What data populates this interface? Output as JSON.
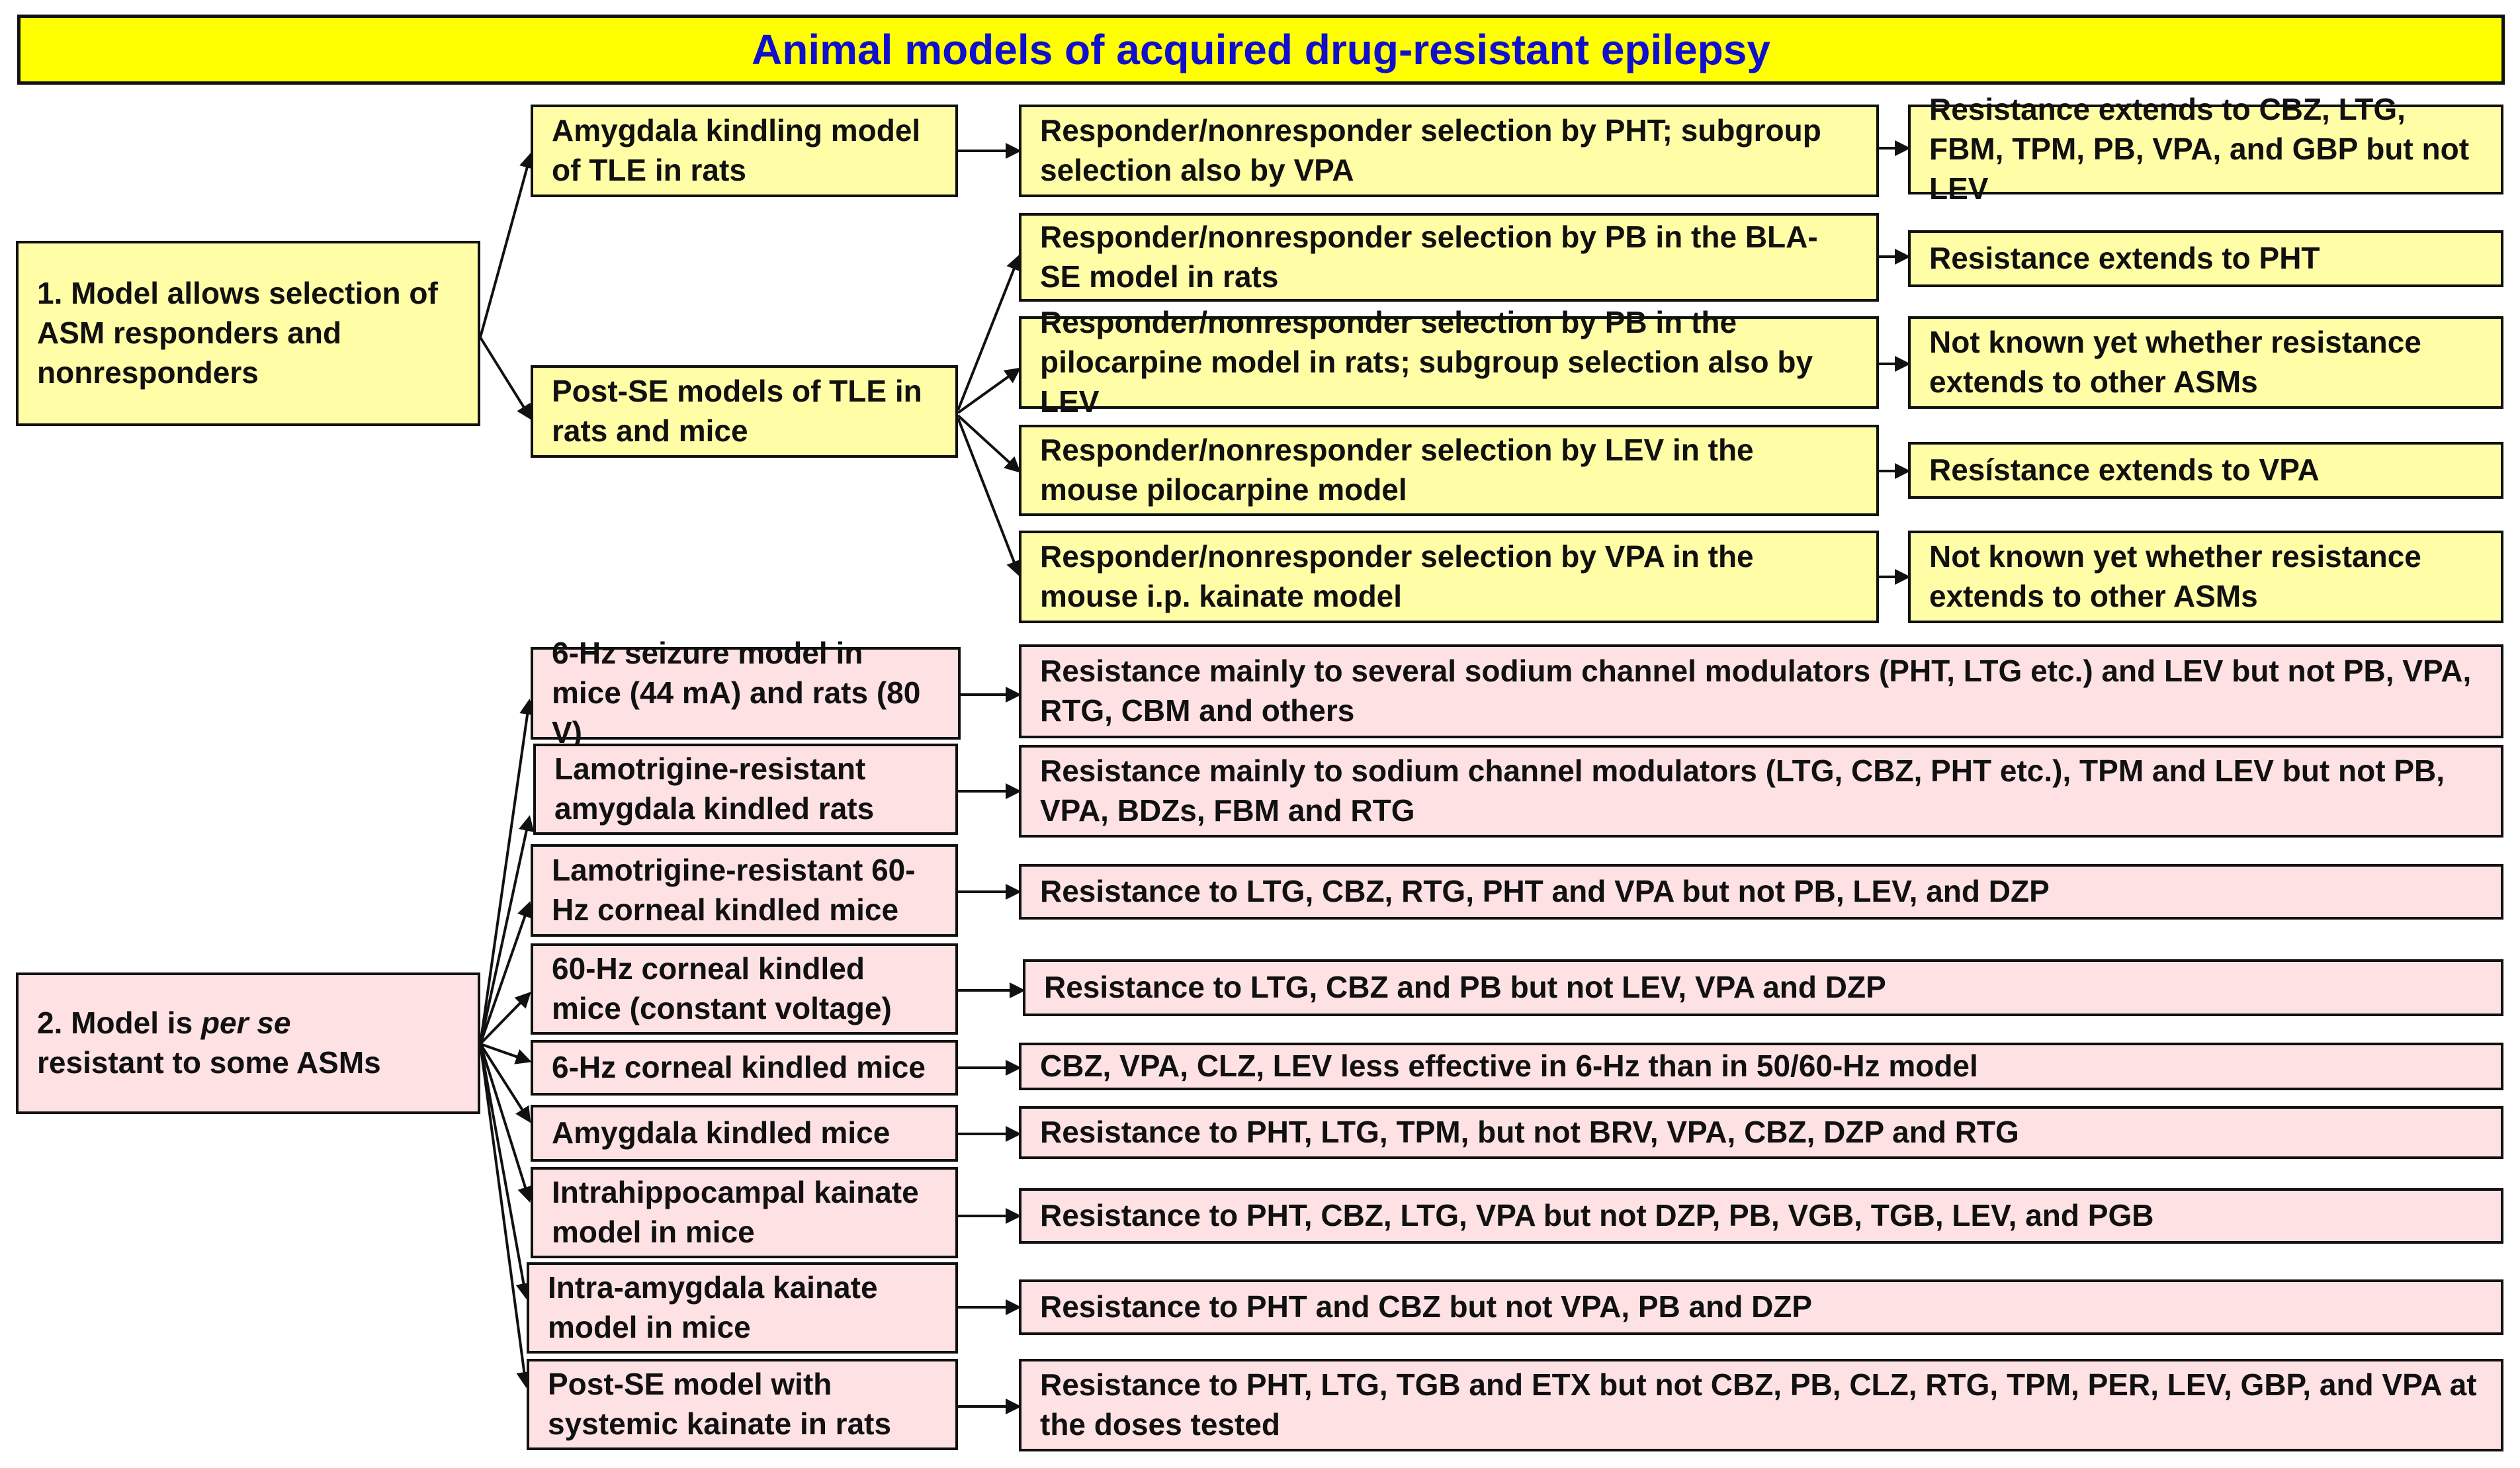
{
  "title": "Animal models of acquired drug-resistant epilepsy",
  "section1": {
    "label": "1. Model allows selection of ASM responders and nonresponders",
    "models": [
      {
        "name": "Amygdala kindling model of TLE in rats"
      },
      {
        "name": "Post-SE models of TLE in rats and mice"
      }
    ],
    "selections": [
      {
        "text": "Responder/nonresponder selection by PHT; subgroup selection also by VPA",
        "outcome": "Resistance extends to CBZ, LTG, FBM, TPM, PB, VPA, and GBP but not LEV"
      },
      {
        "text": "Responder/nonresponder selection  by PB in the BLA-SE model in rats",
        "outcome": "Resistance extends to PHT"
      },
      {
        "text": "Responder/nonresponder selection by PB in the pilocarpine model in rats; subgroup selection also by LEV",
        "outcome": "Not known yet whether  resistance extends to other ASMs"
      },
      {
        "text": "Responder/nonresponder selection by LEV in the mouse pilocarpine model",
        "outcome": "Resístance extends to VPA"
      },
      {
        "text": "Responder/nonresponder selection by VPA in the mouse i.p. kainate model",
        "outcome": "Not known yet whether  resistance extends to other ASMs"
      }
    ]
  },
  "section2": {
    "label_prefix": "2. Model is ",
    "label_italic": "per se",
    "label_suffix": "resistant to some ASMs",
    "models": [
      {
        "name": "6-Hz seizure model in mice (44 mA) and rats (80 V)",
        "outcome": "Resistance mainly to several sodium channel modulators (PHT, LTG etc.) and LEV but not PB, VPA, RTG, CBM and others"
      },
      {
        "name": "Lamotrigine-resistant amygdala kindled rats",
        "outcome": "Resistance mainly to sodium channel modulators (LTG, CBZ, PHT etc.), TPM and LEV but not PB, VPA, BDZs, FBM and RTG"
      },
      {
        "name": "Lamotrigine-resistant 60-Hz corneal kindled mice",
        "outcome": "Resistance to LTG, CBZ, RTG, PHT and VPA but not PB, LEV, and DZP"
      },
      {
        "name": "60-Hz corneal kindled mice (constant voltage)",
        "outcome": "Resistance to LTG, CBZ and PB but not LEV, VPA and  DZP"
      },
      {
        "name": "6-Hz corneal kindled mice",
        "outcome": "CBZ, VPA, CLZ, LEV less effective in 6-Hz than in 50/60-Hz model"
      },
      {
        "name": "Amygdala kindled mice",
        "outcome": "Resistance to PHT, LTG, TPM, but not BRV, VPA, CBZ, DZP and RTG"
      },
      {
        "name": "Intrahippocampal kainate model in mice",
        "outcome": "Resistance to PHT, CBZ, LTG, VPA but not DZP, PB, VGB, TGB, LEV, and PGB"
      },
      {
        "name": "Intra-amygdala kainate model in mice",
        "outcome": "Resistance to PHT and CBZ but not VPA, PB and DZP"
      },
      {
        "name": "Post-SE model with systemic kainate in rats",
        "outcome": "Resistance to PHT, LTG, TGB and ETX but not CBZ, PB, CLZ, RTG, TPM, PER, LEV, GBP, and VPA at the doses tested"
      }
    ]
  },
  "colors": {
    "title_bg": "#ffff00",
    "title_text": "#1010cc",
    "section1_fill": "#fffda6",
    "section2_fill": "#fde1e3",
    "border": "#111111"
  }
}
